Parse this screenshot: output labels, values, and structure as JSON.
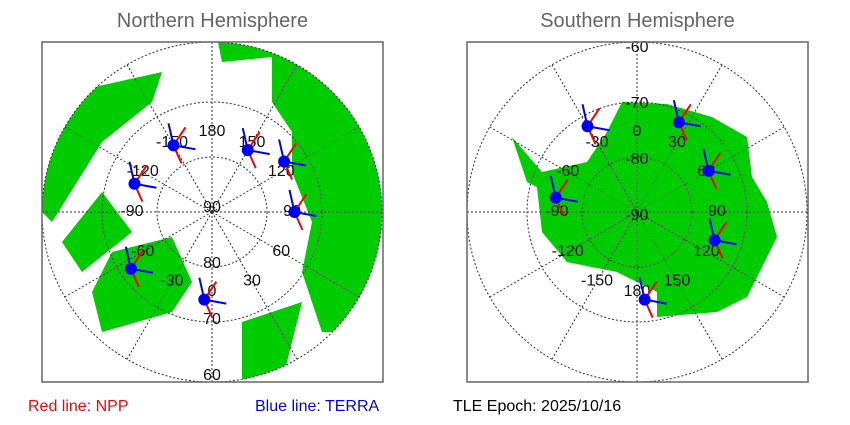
{
  "north": {
    "title": "Northern Hemisphere",
    "lon_labels": [
      {
        "t": "180",
        "a": 180
      },
      {
        "t": "150",
        "a": 150
      },
      {
        "t": "120",
        "a": 120
      },
      {
        "t": "90",
        "a": 90
      },
      {
        "t": "60",
        "a": 60
      },
      {
        "t": "30",
        "a": 30
      },
      {
        "t": "0",
        "a": 0
      },
      {
        "t": "-30",
        "a": -30
      },
      {
        "t": "-60",
        "a": -60
      },
      {
        "t": "-90",
        "a": -90
      },
      {
        "t": "-120",
        "a": -120
      },
      {
        "t": "-150",
        "a": -150
      }
    ],
    "lat_labels": [
      "90",
      "80",
      "70",
      "60"
    ],
    "passes": [
      {
        "lon": -150,
        "lat": 76
      },
      {
        "lon": 150,
        "lat": 77
      },
      {
        "lon": 125,
        "lat": 74
      },
      {
        "lon": 90,
        "lat": 75
      },
      {
        "lon": -110,
        "lat": 75
      },
      {
        "lon": -55,
        "lat": 72
      },
      {
        "lon": -5,
        "lat": 74
      }
    ]
  },
  "south": {
    "title": "Southern Hemisphere",
    "lon_labels": [
      {
        "t": "0",
        "a": 0
      },
      {
        "t": "30",
        "a": 30
      },
      {
        "t": "60",
        "a": 60
      },
      {
        "t": "90",
        "a": 90
      },
      {
        "t": "120",
        "a": 120
      },
      {
        "t": "150",
        "a": 150
      },
      {
        "t": "180",
        "a": 180
      },
      {
        "t": "-150",
        "a": -150
      },
      {
        "t": "-120",
        "a": -120
      },
      {
        "t": "-90",
        "a": -90
      },
      {
        "t": "-60",
        "a": -60
      },
      {
        "t": "-30",
        "a": -30
      }
    ],
    "lat_labels": [
      "-90",
      "-80",
      "-70",
      "-60"
    ],
    "passes": [
      {
        "lon": -30,
        "lat": -72
      },
      {
        "lon": 25,
        "lat": -72
      },
      {
        "lon": 60,
        "lat": -75
      },
      {
        "lon": -80,
        "lat": -75
      },
      {
        "lon": 110,
        "lat": -75
      },
      {
        "lon": 175,
        "lat": -74
      }
    ]
  },
  "legend": {
    "npp": "Red line: NPP",
    "terra": "Blue line: TERRA",
    "epoch": "TLE Epoch: 2025/10/16"
  },
  "colors": {
    "land": "#00cc00",
    "npp": "#ff0000",
    "terra": "#0000ff"
  }
}
